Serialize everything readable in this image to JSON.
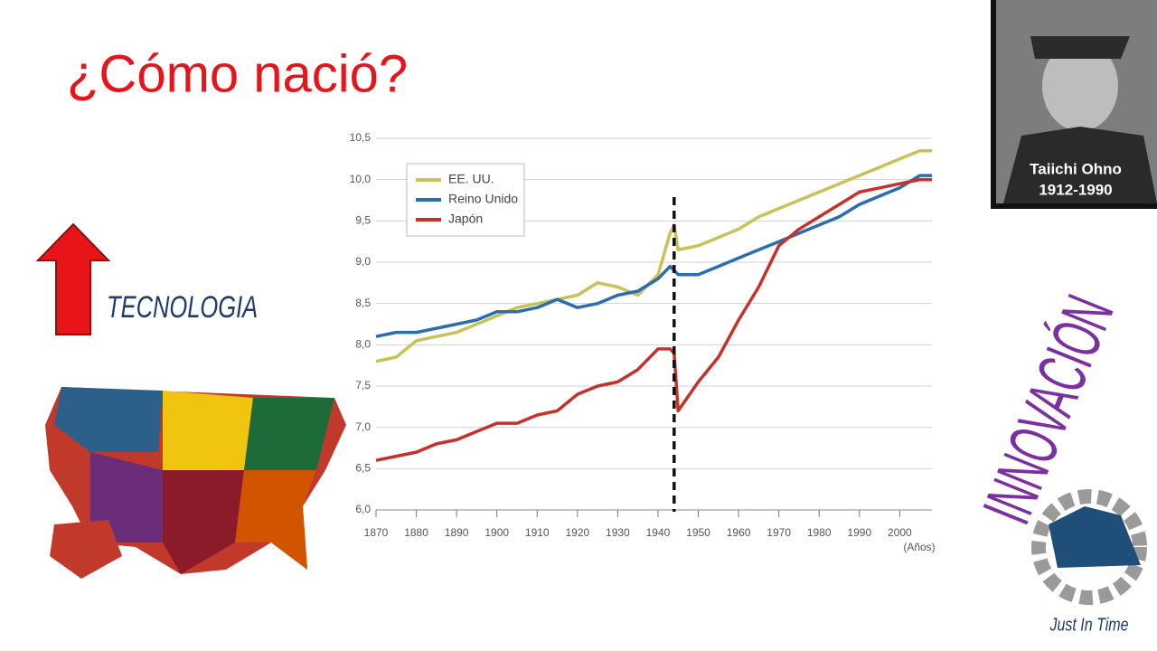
{
  "slide_title": "¿Cómo nació?",
  "left_label": "TECNOLOGIA",
  "right_label": "INNOVACIÓN",
  "photo": {
    "name": "Taiichi Ohno",
    "years": "1912-1990"
  },
  "logo_text": "Just In Time",
  "chart_data": {
    "type": "line",
    "x_label": "(Años)",
    "x": [
      1870,
      1875,
      1880,
      1885,
      1890,
      1895,
      1900,
      1905,
      1910,
      1915,
      1920,
      1925,
      1930,
      1935,
      1940,
      1943,
      1944,
      1945,
      1950,
      1955,
      1960,
      1965,
      1970,
      1975,
      1980,
      1985,
      1990,
      1995,
      2000,
      2005,
      2008
    ],
    "series": [
      {
        "name": "EE. UU.",
        "color": "#c9c357",
        "values": [
          7.8,
          7.85,
          8.05,
          8.1,
          8.15,
          8.25,
          8.35,
          8.45,
          8.5,
          8.55,
          8.6,
          8.75,
          8.7,
          8.6,
          8.85,
          9.35,
          9.45,
          9.15,
          9.2,
          9.3,
          9.4,
          9.55,
          9.65,
          9.75,
          9.85,
          9.95,
          10.05,
          10.15,
          10.25,
          10.35,
          10.35
        ]
      },
      {
        "name": "Reino Unido",
        "color": "#2a6db0",
        "values": [
          8.1,
          8.15,
          8.15,
          8.2,
          8.25,
          8.3,
          8.4,
          8.4,
          8.45,
          8.55,
          8.45,
          8.5,
          8.6,
          8.65,
          8.8,
          8.95,
          8.9,
          8.85,
          8.85,
          8.95,
          9.05,
          9.15,
          9.25,
          9.35,
          9.45,
          9.55,
          9.7,
          9.8,
          9.9,
          10.05,
          10.05
        ]
      },
      {
        "name": "Japón",
        "color": "#c8302a",
        "values": [
          6.6,
          6.65,
          6.7,
          6.8,
          6.85,
          6.95,
          7.05,
          7.05,
          7.15,
          7.2,
          7.4,
          7.5,
          7.55,
          7.7,
          7.95,
          7.95,
          7.9,
          7.2,
          7.55,
          7.85,
          8.3,
          8.7,
          9.2,
          9.4,
          9.55,
          9.7,
          9.85,
          9.9,
          9.95,
          10.0,
          10.0
        ]
      }
    ],
    "xlim": [
      1870,
      2008
    ],
    "xticks": [
      1870,
      1880,
      1890,
      1900,
      1910,
      1920,
      1930,
      1940,
      1950,
      1960,
      1970,
      1980,
      1990,
      2000
    ],
    "ylim": [
      6,
      10.5
    ],
    "yticks": [
      {
        "value": 6,
        "label": "6,0"
      },
      {
        "value": 6.5,
        "label": "6,5"
      },
      {
        "value": 7,
        "label": "7,0"
      },
      {
        "value": 7.5,
        "label": "7,5"
      },
      {
        "value": 8,
        "label": "8,0"
      },
      {
        "value": 8.5,
        "label": "8,5"
      },
      {
        "value": 9,
        "label": "9,0"
      },
      {
        "value": 9.5,
        "label": "9,5"
      },
      {
        "value": 10,
        "label": "10,0"
      },
      {
        "value": 10.5,
        "label": "10,5"
      }
    ],
    "grid": true,
    "legend": "top-left",
    "vline": 1944
  }
}
